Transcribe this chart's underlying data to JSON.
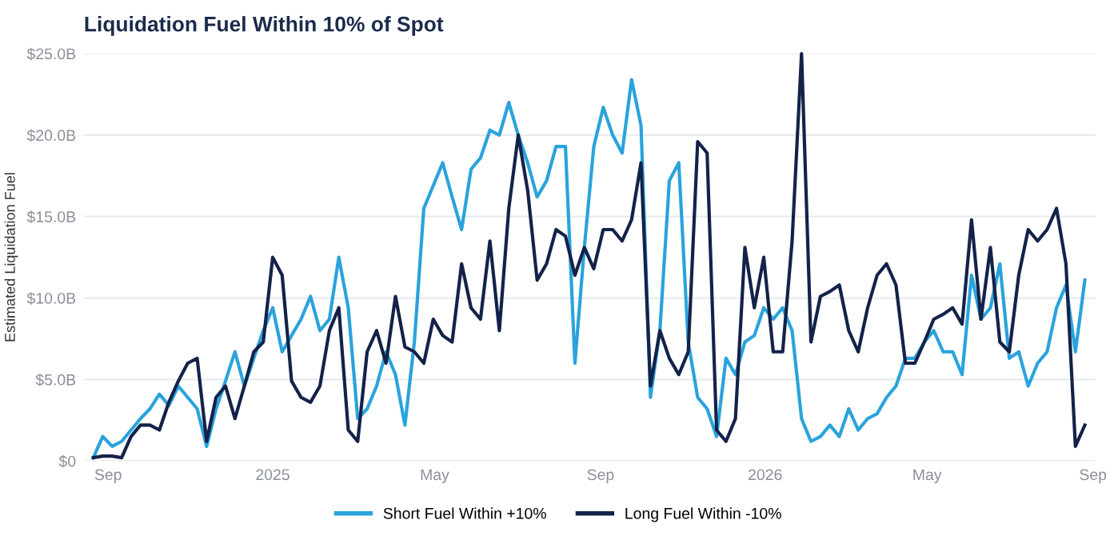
{
  "chart_data": {
    "type": "line",
    "title": "Liquidation Fuel Within 10% of Spot",
    "ylabel": "Estimated Liquidation Fuel",
    "x": [
      "2024-08-21",
      "2024-08-28",
      "2024-09-04",
      "2024-09-11",
      "2024-09-18",
      "2024-09-25",
      "2024-10-02",
      "2024-10-09",
      "2024-10-16",
      "2024-10-23",
      "2024-10-30",
      "2024-11-06",
      "2024-11-13",
      "2024-11-20",
      "2024-11-27",
      "2024-12-04",
      "2024-12-11",
      "2024-12-18",
      "2024-12-25",
      "2025-01-01",
      "2025-01-08",
      "2025-01-15",
      "2025-01-22",
      "2025-01-29",
      "2025-02-05",
      "2025-02-12",
      "2025-02-19",
      "2025-02-26",
      "2025-03-05",
      "2025-03-12",
      "2025-03-19",
      "2025-03-26",
      "2025-04-02",
      "2025-04-09",
      "2025-04-16",
      "2025-04-23",
      "2025-04-30",
      "2025-05-07",
      "2025-05-14",
      "2025-05-21",
      "2025-05-28",
      "2025-06-04",
      "2025-06-11",
      "2025-06-18",
      "2025-06-25",
      "2025-07-02",
      "2025-07-09",
      "2025-07-16",
      "2025-07-23",
      "2025-07-30",
      "2025-08-06",
      "2025-08-13",
      "2025-08-20",
      "2025-08-27",
      "2025-09-03",
      "2025-09-10",
      "2025-09-17",
      "2025-09-24",
      "2025-10-01",
      "2025-10-08",
      "2025-10-15",
      "2025-10-22",
      "2025-10-29",
      "2025-11-05",
      "2025-11-12",
      "2025-11-19",
      "2025-11-26",
      "2025-12-03",
      "2025-12-10",
      "2025-12-17",
      "2025-12-24",
      "2025-12-31",
      "2026-01-07",
      "2026-01-14",
      "2026-01-21",
      "2026-01-28",
      "2026-02-04",
      "2026-02-11",
      "2026-02-18",
      "2026-02-25",
      "2026-03-04",
      "2026-03-11",
      "2026-03-18",
      "2026-03-25",
      "2026-04-01",
      "2026-04-08",
      "2026-04-15",
      "2026-04-22",
      "2026-04-29",
      "2026-05-06",
      "2026-05-13",
      "2026-05-20",
      "2026-05-27",
      "2026-06-03",
      "2026-06-10",
      "2026-06-17",
      "2026-06-24",
      "2026-07-01",
      "2026-07-08",
      "2026-07-15",
      "2026-07-22",
      "2026-07-29",
      "2026-08-05",
      "2026-08-12",
      "2026-08-19",
      "2026-08-26"
    ],
    "series": [
      {
        "name": "Short Fuel Within +10%",
        "color": "#2aa3dc",
        "values": [
          0.2,
          1.5,
          0.9,
          1.2,
          1.9,
          2.6,
          3.2,
          4.1,
          3.4,
          4.6,
          3.9,
          3.2,
          0.9,
          3.2,
          4.9,
          6.7,
          4.6,
          6.3,
          8.0,
          9.4,
          6.7,
          7.7,
          8.7,
          10.1,
          8.0,
          8.7,
          12.5,
          9.4,
          2.6,
          3.2,
          4.6,
          6.7,
          5.3,
          2.2,
          7.3,
          15.5,
          16.9,
          18.3,
          16.2,
          14.2,
          17.9,
          18.6,
          20.3,
          20.0,
          22.0,
          20.0,
          18.3,
          16.2,
          17.2,
          19.3,
          19.3,
          6.0,
          13.1,
          19.3,
          21.7,
          20.0,
          18.9,
          23.4,
          20.6,
          3.9,
          8.0,
          17.2,
          18.3,
          7.3,
          3.9,
          3.2,
          1.5,
          6.3,
          5.3,
          7.3,
          7.7,
          9.4,
          8.7,
          9.4,
          8.0,
          2.6,
          1.2,
          1.5,
          2.2,
          1.5,
          3.2,
          1.9,
          2.6,
          2.9,
          3.9,
          4.6,
          6.3,
          6.3,
          7.3,
          8.0,
          6.7,
          6.7,
          5.3,
          11.4,
          8.7,
          9.4,
          12.1,
          6.3,
          6.7,
          4.6,
          6.0,
          6.7,
          9.4,
          10.8,
          6.7,
          11.1
        ]
      },
      {
        "name": "Long Fuel Within -10%",
        "color": "#14224a",
        "values": [
          0.2,
          0.3,
          0.3,
          0.2,
          1.5,
          2.2,
          2.2,
          1.9,
          3.6,
          4.9,
          6.0,
          6.3,
          1.2,
          3.9,
          4.6,
          2.6,
          4.6,
          6.7,
          7.3,
          12.5,
          11.4,
          4.9,
          3.9,
          3.6,
          4.6,
          8.0,
          9.4,
          1.9,
          1.2,
          6.7,
          8.0,
          6.0,
          10.1,
          7.0,
          6.7,
          6.0,
          8.7,
          7.7,
          7.3,
          12.1,
          9.4,
          8.7,
          13.5,
          8.0,
          15.5,
          20.0,
          16.6,
          11.1,
          12.1,
          14.2,
          13.8,
          11.4,
          13.1,
          11.8,
          14.2,
          14.2,
          13.5,
          14.8,
          18.3,
          4.6,
          8.0,
          6.3,
          5.3,
          6.7,
          19.6,
          18.9,
          1.9,
          1.2,
          2.6,
          13.1,
          9.4,
          12.5,
          6.7,
          6.7,
          13.5,
          25.0,
          7.3,
          10.1,
          10.4,
          10.8,
          8.0,
          6.7,
          9.4,
          11.4,
          12.1,
          10.8,
          6.0,
          6.0,
          7.3,
          8.7,
          9.0,
          9.4,
          8.4,
          14.8,
          8.7,
          13.1,
          7.3,
          6.7,
          11.4,
          14.2,
          13.5,
          14.2,
          15.5,
          12.1,
          0.9,
          2.2
        ]
      }
    ],
    "xlim": [
      "2024-08-14",
      "2026-09-03"
    ],
    "xticks": [
      {
        "value": "2024-09-01",
        "label": "Sep"
      },
      {
        "value": "2025-01-01",
        "label": "2025"
      },
      {
        "value": "2025-05-01",
        "label": "May"
      },
      {
        "value": "2025-09-01",
        "label": "Sep"
      },
      {
        "value": "2026-01-01",
        "label": "2026"
      },
      {
        "value": "2026-05-01",
        "label": "May"
      },
      {
        "value": "2026-09-01",
        "label": "Sep"
      }
    ],
    "ylim": [
      0,
      25
    ],
    "yticks": [
      {
        "value": 0,
        "label": "$0"
      },
      {
        "value": 5,
        "label": "$5.0B"
      },
      {
        "value": 10,
        "label": "$10.0B"
      },
      {
        "value": 15,
        "label": "$15.0B"
      },
      {
        "value": 20,
        "label": "$20.0B"
      },
      {
        "value": 25,
        "label": "$25.0B"
      }
    ],
    "grid": "y",
    "legend": "bottom",
    "marker": "none",
    "line_style": "solid"
  }
}
